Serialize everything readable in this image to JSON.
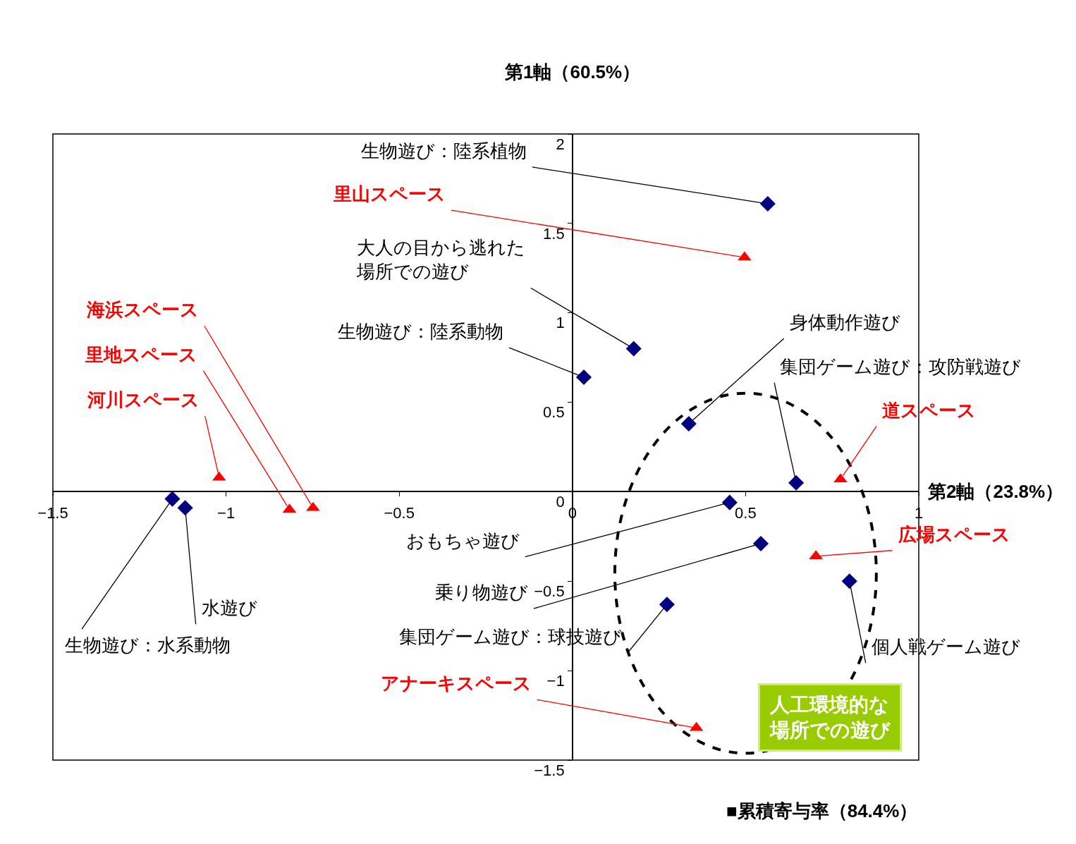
{
  "chart_data": {
    "type": "scatter",
    "xlabel": "第2軸（23.8%）",
    "ylabel": "第1軸（60.5%）",
    "xlim": [
      -1.5,
      1
    ],
    "ylim": [
      -1.5,
      2
    ],
    "xticks": [
      {
        "value": -1.5,
        "label": "−1.5"
      },
      {
        "value": -1,
        "label": "−1"
      },
      {
        "value": -0.5,
        "label": "−0.5"
      },
      0,
      0.5,
      1
    ],
    "yticks": [
      {
        "value": -1.5,
        "label": "−1.5"
      },
      {
        "value": -1,
        "label": "−1"
      },
      {
        "value": -0.5,
        "label": "−0.5"
      },
      0,
      0.5,
      1,
      1.5,
      2
    ],
    "grid": false,
    "series": [
      {
        "color": "#000080",
        "marker": "diamond",
        "x": [
          0.564,
          0.177,
          0.033,
          0.336,
          0.646,
          0.454,
          0.544,
          0.8,
          0.273,
          -1.118,
          -1.155
        ],
        "values": [
          1.61,
          0.8,
          0.64,
          0.38,
          0.05,
          -0.06,
          -0.29,
          -0.5,
          -0.63,
          -0.09,
          -0.04
        ]
      },
      {
        "color": "#ff0000",
        "marker": "triangle",
        "x": [
          0.497,
          -0.749,
          -0.817,
          -1.02,
          0.774,
          0.703,
          0.358
        ],
        "values": [
          1.31,
          -0.09,
          -0.1,
          0.08,
          0.07,
          -0.36,
          -1.32
        ]
      }
    ],
    "annotations": [
      {
        "text": "生物遊び：陸系植物",
        "x": 0.564,
        "y": 1.61
      },
      {
        "text": "大人の目から逃れた場所での遊び",
        "x": 0.177,
        "y": 0.8
      },
      {
        "text": "生物遊び：陸系動物",
        "x": 0.033,
        "y": 0.64
      },
      {
        "text": "身体動作遊び",
        "x": 0.336,
        "y": 0.38
      },
      {
        "text": "集団ゲーム遊び：攻防戦遊び",
        "x": 0.646,
        "y": 0.05
      },
      {
        "text": "おもちゃ遊び",
        "x": 0.454,
        "y": -0.06
      },
      {
        "text": "乗り物遊び",
        "x": 0.544,
        "y": -0.29
      },
      {
        "text": "個人戦ゲーム遊び",
        "x": 0.8,
        "y": -0.5
      },
      {
        "text": "集団ゲーム遊び：球技遊び",
        "x": 0.273,
        "y": -0.63
      },
      {
        "text": "水遊び",
        "x": -1.118,
        "y": -0.09
      },
      {
        "text": "生物遊び：水系動物",
        "x": -1.155,
        "y": -0.04
      },
      {
        "text": "里山スペース",
        "x": 0.497,
        "y": 1.31
      },
      {
        "text": "海浜スペース",
        "x": -0.749,
        "y": -0.09
      },
      {
        "text": "里地スペース",
        "x": -0.817,
        "y": -0.1
      },
      {
        "text": "河川スペース",
        "x": -1.02,
        "y": 0.08
      },
      {
        "text": "道スペース",
        "x": 0.774,
        "y": 0.07
      },
      {
        "text": "広場スペース",
        "x": 0.703,
        "y": -0.36
      },
      {
        "text": "アナーキスペース",
        "x": 0.358,
        "y": -1.32
      },
      "人工環境的な場所での遊び",
      "■累積寄与率（84.4%）"
    ]
  }
}
